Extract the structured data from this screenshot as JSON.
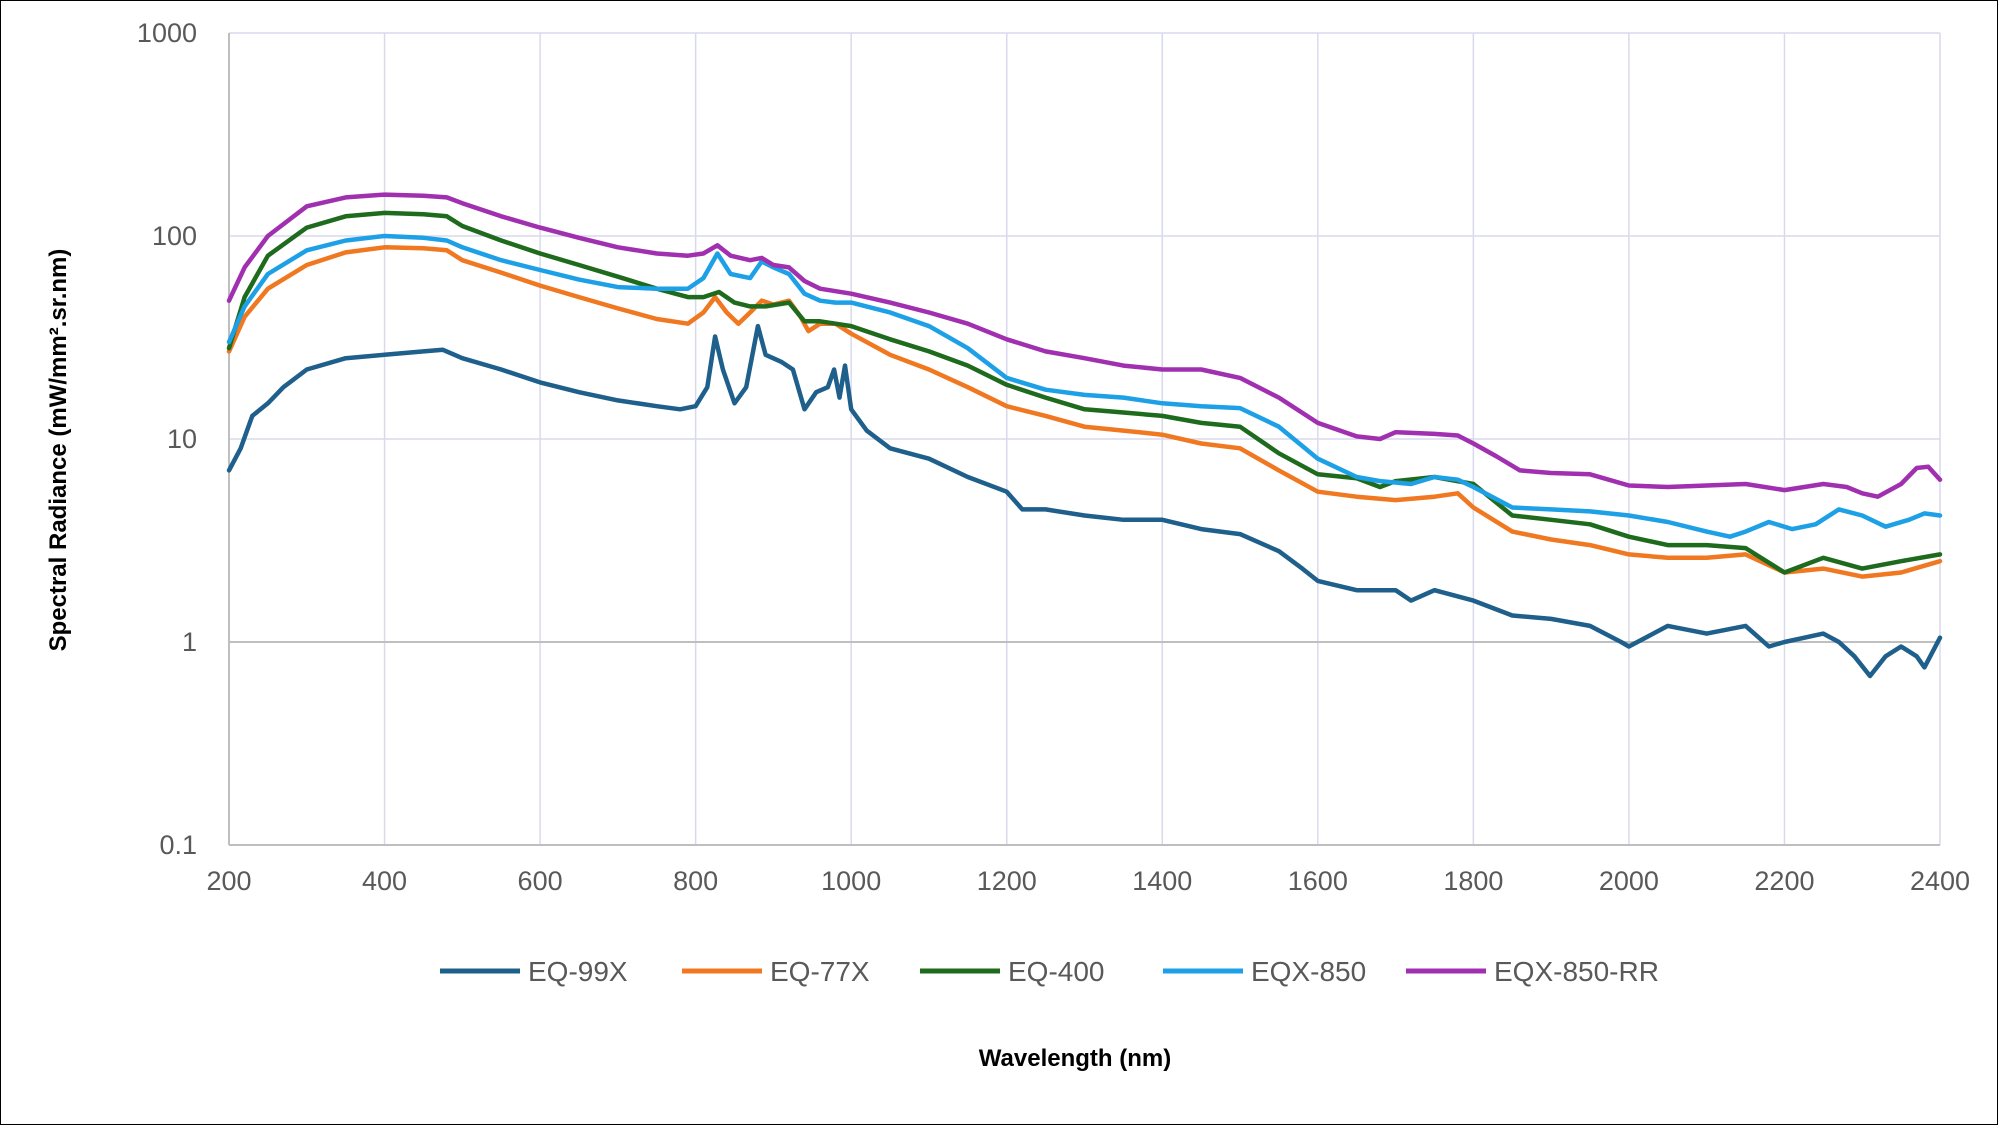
{
  "chart_data": {
    "type": "line",
    "xlabel": "Wavelength (nm)",
    "ylabel": "Spectral Radiance (mW/mm².sr.nm)",
    "xlim": [
      200,
      2400
    ],
    "ylim": [
      0.1,
      1000
    ],
    "yscale": "log",
    "x_ticks": [
      200,
      400,
      600,
      800,
      1000,
      1200,
      1400,
      1600,
      1800,
      2000,
      2200,
      2400
    ],
    "y_ticks": [
      0.1,
      1,
      10,
      100,
      1000
    ],
    "y_tick_labels": [
      "0.1",
      "1",
      "10",
      "100",
      "1000"
    ],
    "grid": true,
    "legend_position": "bottom",
    "series": [
      {
        "name": "EQ-99X",
        "color": "#1f5f8b",
        "points": [
          [
            200,
            7
          ],
          [
            215,
            9
          ],
          [
            230,
            13
          ],
          [
            250,
            15
          ],
          [
            270,
            18
          ],
          [
            300,
            22
          ],
          [
            350,
            25
          ],
          [
            400,
            26
          ],
          [
            450,
            27
          ],
          [
            475,
            27.5
          ],
          [
            500,
            25
          ],
          [
            550,
            22
          ],
          [
            600,
            19
          ],
          [
            650,
            17
          ],
          [
            700,
            15.5
          ],
          [
            750,
            14.5
          ],
          [
            780,
            14
          ],
          [
            800,
            14.5
          ],
          [
            815,
            18
          ],
          [
            825,
            32
          ],
          [
            835,
            22
          ],
          [
            850,
            15
          ],
          [
            865,
            18
          ],
          [
            880,
            36
          ],
          [
            890,
            26
          ],
          [
            910,
            24
          ],
          [
            925,
            22
          ],
          [
            940,
            14
          ],
          [
            955,
            17
          ],
          [
            970,
            18
          ],
          [
            978,
            22
          ],
          [
            985,
            16
          ],
          [
            992,
            23
          ],
          [
            1000,
            14
          ],
          [
            1020,
            11
          ],
          [
            1050,
            9
          ],
          [
            1100,
            8
          ],
          [
            1150,
            6.5
          ],
          [
            1200,
            5.5
          ],
          [
            1220,
            4.5
          ],
          [
            1250,
            4.5
          ],
          [
            1300,
            4.2
          ],
          [
            1350,
            4
          ],
          [
            1400,
            4
          ],
          [
            1450,
            3.6
          ],
          [
            1500,
            3.4
          ],
          [
            1550,
            2.8
          ],
          [
            1580,
            2.3
          ],
          [
            1600,
            2
          ],
          [
            1650,
            1.8
          ],
          [
            1700,
            1.8
          ],
          [
            1720,
            1.6
          ],
          [
            1750,
            1.8
          ],
          [
            1800,
            1.6
          ],
          [
            1850,
            1.35
          ],
          [
            1900,
            1.3
          ],
          [
            1950,
            1.2
          ],
          [
            1990,
            1.0
          ],
          [
            2000,
            0.95
          ],
          [
            2050,
            1.2
          ],
          [
            2100,
            1.1
          ],
          [
            2150,
            1.2
          ],
          [
            2180,
            0.95
          ],
          [
            2200,
            1.0
          ],
          [
            2250,
            1.1
          ],
          [
            2270,
            1.0
          ],
          [
            2290,
            0.85
          ],
          [
            2310,
            0.68
          ],
          [
            2330,
            0.85
          ],
          [
            2350,
            0.95
          ],
          [
            2370,
            0.85
          ],
          [
            2380,
            0.75
          ],
          [
            2400,
            1.05
          ]
        ]
      },
      {
        "name": "EQ-77X",
        "color": "#f07820",
        "points": [
          [
            200,
            27
          ],
          [
            220,
            40
          ],
          [
            250,
            55
          ],
          [
            300,
            72
          ],
          [
            350,
            83
          ],
          [
            400,
            88
          ],
          [
            450,
            87
          ],
          [
            480,
            85
          ],
          [
            500,
            76
          ],
          [
            550,
            66
          ],
          [
            600,
            57
          ],
          [
            650,
            50
          ],
          [
            700,
            44
          ],
          [
            750,
            39
          ],
          [
            790,
            37
          ],
          [
            810,
            42
          ],
          [
            825,
            50
          ],
          [
            840,
            42
          ],
          [
            855,
            37
          ],
          [
            870,
            42
          ],
          [
            885,
            48
          ],
          [
            900,
            46
          ],
          [
            920,
            48
          ],
          [
            935,
            40
          ],
          [
            945,
            34
          ],
          [
            960,
            37
          ],
          [
            980,
            37
          ],
          [
            1000,
            33
          ],
          [
            1050,
            26
          ],
          [
            1100,
            22
          ],
          [
            1150,
            18
          ],
          [
            1200,
            14.5
          ],
          [
            1250,
            13
          ],
          [
            1300,
            11.5
          ],
          [
            1350,
            11
          ],
          [
            1400,
            10.5
          ],
          [
            1450,
            9.5
          ],
          [
            1500,
            9
          ],
          [
            1550,
            7
          ],
          [
            1600,
            5.5
          ],
          [
            1650,
            5.2
          ],
          [
            1700,
            5
          ],
          [
            1750,
            5.2
          ],
          [
            1780,
            5.4
          ],
          [
            1800,
            4.6
          ],
          [
            1850,
            3.5
          ],
          [
            1900,
            3.2
          ],
          [
            1950,
            3
          ],
          [
            2000,
            2.7
          ],
          [
            2050,
            2.6
          ],
          [
            2100,
            2.6
          ],
          [
            2150,
            2.7
          ],
          [
            2200,
            2.2
          ],
          [
            2250,
            2.3
          ],
          [
            2300,
            2.1
          ],
          [
            2350,
            2.2
          ],
          [
            2400,
            2.5
          ]
        ]
      },
      {
        "name": "EQ-400",
        "color": "#1e6b1e",
        "points": [
          [
            200,
            28
          ],
          [
            220,
            50
          ],
          [
            250,
            80
          ],
          [
            300,
            110
          ],
          [
            350,
            125
          ],
          [
            400,
            130
          ],
          [
            450,
            128
          ],
          [
            480,
            125
          ],
          [
            500,
            112
          ],
          [
            550,
            95
          ],
          [
            600,
            82
          ],
          [
            650,
            72
          ],
          [
            700,
            63
          ],
          [
            750,
            55
          ],
          [
            790,
            50
          ],
          [
            810,
            50
          ],
          [
            830,
            53
          ],
          [
            850,
            47
          ],
          [
            870,
            45
          ],
          [
            890,
            45
          ],
          [
            920,
            47
          ],
          [
            940,
            38
          ],
          [
            960,
            38
          ],
          [
            980,
            37
          ],
          [
            1000,
            36
          ],
          [
            1050,
            31
          ],
          [
            1100,
            27
          ],
          [
            1150,
            23
          ],
          [
            1200,
            18.5
          ],
          [
            1250,
            16
          ],
          [
            1300,
            14
          ],
          [
            1350,
            13.5
          ],
          [
            1400,
            13
          ],
          [
            1450,
            12
          ],
          [
            1500,
            11.5
          ],
          [
            1550,
            8.5
          ],
          [
            1600,
            6.7
          ],
          [
            1650,
            6.4
          ],
          [
            1680,
            5.8
          ],
          [
            1700,
            6.2
          ],
          [
            1750,
            6.5
          ],
          [
            1800,
            6
          ],
          [
            1850,
            4.2
          ],
          [
            1900,
            4
          ],
          [
            1950,
            3.8
          ],
          [
            2000,
            3.3
          ],
          [
            2050,
            3
          ],
          [
            2100,
            3
          ],
          [
            2150,
            2.9
          ],
          [
            2200,
            2.2
          ],
          [
            2250,
            2.6
          ],
          [
            2300,
            2.3
          ],
          [
            2350,
            2.5
          ],
          [
            2400,
            2.7
          ]
        ]
      },
      {
        "name": "EQX-850",
        "color": "#1ea0e6",
        "points": [
          [
            200,
            30
          ],
          [
            220,
            45
          ],
          [
            250,
            65
          ],
          [
            300,
            85
          ],
          [
            350,
            95
          ],
          [
            400,
            100
          ],
          [
            450,
            98
          ],
          [
            480,
            95
          ],
          [
            500,
            88
          ],
          [
            550,
            76
          ],
          [
            600,
            68
          ],
          [
            650,
            61
          ],
          [
            700,
            56
          ],
          [
            750,
            55
          ],
          [
            790,
            55
          ],
          [
            810,
            62
          ],
          [
            828,
            82
          ],
          [
            845,
            65
          ],
          [
            870,
            62
          ],
          [
            885,
            75
          ],
          [
            900,
            70
          ],
          [
            920,
            65
          ],
          [
            940,
            52
          ],
          [
            960,
            48
          ],
          [
            980,
            47
          ],
          [
            1000,
            47
          ],
          [
            1050,
            42
          ],
          [
            1100,
            36
          ],
          [
            1150,
            28
          ],
          [
            1200,
            20
          ],
          [
            1250,
            17.5
          ],
          [
            1300,
            16.5
          ],
          [
            1350,
            16
          ],
          [
            1400,
            15
          ],
          [
            1450,
            14.5
          ],
          [
            1500,
            14.2
          ],
          [
            1550,
            11.5
          ],
          [
            1600,
            8
          ],
          [
            1650,
            6.5
          ],
          [
            1680,
            6.2
          ],
          [
            1720,
            6
          ],
          [
            1750,
            6.5
          ],
          [
            1780,
            6.3
          ],
          [
            1800,
            5.8
          ],
          [
            1850,
            4.6
          ],
          [
            1900,
            4.5
          ],
          [
            1950,
            4.4
          ],
          [
            2000,
            4.2
          ],
          [
            2050,
            3.9
          ],
          [
            2100,
            3.5
          ],
          [
            2130,
            3.3
          ],
          [
            2150,
            3.5
          ],
          [
            2180,
            3.9
          ],
          [
            2210,
            3.6
          ],
          [
            2240,
            3.8
          ],
          [
            2270,
            4.5
          ],
          [
            2300,
            4.2
          ],
          [
            2330,
            3.7
          ],
          [
            2360,
            4
          ],
          [
            2380,
            4.3
          ],
          [
            2400,
            4.2
          ]
        ]
      },
      {
        "name": "EQX-850-RR",
        "color": "#a030b0",
        "points": [
          [
            200,
            48
          ],
          [
            220,
            70
          ],
          [
            250,
            100
          ],
          [
            300,
            140
          ],
          [
            350,
            155
          ],
          [
            400,
            160
          ],
          [
            450,
            158
          ],
          [
            480,
            155
          ],
          [
            500,
            145
          ],
          [
            550,
            125
          ],
          [
            600,
            110
          ],
          [
            650,
            98
          ],
          [
            700,
            88
          ],
          [
            750,
            82
          ],
          [
            790,
            80
          ],
          [
            810,
            82
          ],
          [
            828,
            90
          ],
          [
            845,
            80
          ],
          [
            870,
            76
          ],
          [
            885,
            78
          ],
          [
            900,
            72
          ],
          [
            920,
            70
          ],
          [
            940,
            60
          ],
          [
            960,
            55
          ],
          [
            1000,
            52
          ],
          [
            1050,
            47
          ],
          [
            1100,
            42
          ],
          [
            1150,
            37
          ],
          [
            1200,
            31
          ],
          [
            1250,
            27
          ],
          [
            1300,
            25
          ],
          [
            1350,
            23
          ],
          [
            1400,
            22
          ],
          [
            1450,
            22
          ],
          [
            1500,
            20
          ],
          [
            1550,
            16
          ],
          [
            1600,
            12
          ],
          [
            1650,
            10.3
          ],
          [
            1680,
            10
          ],
          [
            1700,
            10.8
          ],
          [
            1750,
            10.6
          ],
          [
            1780,
            10.4
          ],
          [
            1800,
            9.5
          ],
          [
            1830,
            8.2
          ],
          [
            1860,
            7
          ],
          [
            1900,
            6.8
          ],
          [
            1950,
            6.7
          ],
          [
            2000,
            5.9
          ],
          [
            2050,
            5.8
          ],
          [
            2100,
            5.9
          ],
          [
            2150,
            6
          ],
          [
            2200,
            5.6
          ],
          [
            2250,
            6
          ],
          [
            2280,
            5.8
          ],
          [
            2300,
            5.4
          ],
          [
            2320,
            5.2
          ],
          [
            2350,
            6
          ],
          [
            2370,
            7.2
          ],
          [
            2385,
            7.3
          ],
          [
            2400,
            6.3
          ]
        ]
      }
    ]
  }
}
